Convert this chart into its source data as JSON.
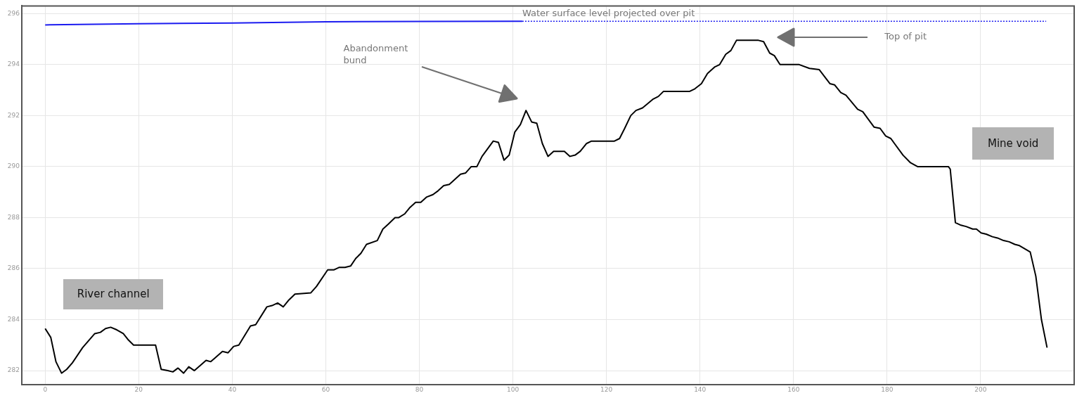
{
  "chart_data": {
    "type": "line",
    "xlim": [
      -5,
      220
    ],
    "ylim": [
      281.45,
      296.3
    ],
    "xticks": [
      0,
      20,
      40,
      60,
      80,
      100,
      120,
      140,
      160,
      180,
      200
    ],
    "yticks": [
      282,
      284,
      286,
      288,
      290,
      292,
      294,
      296
    ],
    "grid": true,
    "marker": "none",
    "series": [
      {
        "color": "#000000",
        "line_style": "solid",
        "x": [
          0,
          1.2,
          2.3,
          3.5,
          4.6,
          5.8,
          8,
          10.6,
          11.8,
          12.9,
          14,
          15.3,
          16.7,
          17.8,
          18.9,
          23.6,
          24.8,
          26.2,
          27.3,
          28.4,
          29.6,
          30.7,
          31.9,
          34.4,
          35.4,
          37.9,
          39.1,
          40.3,
          41.4,
          43.9,
          45,
          47.4,
          48.5,
          49.7,
          50.9,
          52,
          53.4,
          56.8,
          58,
          60.4,
          61.7,
          62.9,
          64.1,
          65.3,
          66.4,
          67.5,
          68.7,
          71,
          72.2,
          73.4,
          74.8,
          75.6,
          76.9,
          78,
          79.2,
          80.3,
          81.5,
          82.9,
          84,
          85.2,
          86.4,
          88.8,
          89.9,
          91.1,
          92.3,
          93.4,
          95.8,
          96.9,
          98.1,
          99.2,
          100.4,
          101.6,
          102.8,
          104,
          105.1,
          106.3,
          107.5,
          108.7,
          111,
          112.2,
          113.3,
          114.4,
          115.7,
          116.8,
          121.7,
          122.8,
          123.9,
          125.2,
          126.3,
          127.7,
          128.7,
          130,
          131.1,
          132.2,
          137.8,
          138.9,
          140.3,
          141.6,
          143.1,
          144.2,
          145.5,
          146.6,
          147.8,
          152.5,
          153.6,
          154.9,
          155.9,
          157.1,
          161.2,
          163.4,
          165.5,
          167.8,
          168.8,
          170.1,
          171.2,
          173.7,
          174.8,
          177.2,
          178.5,
          179.7,
          180.8,
          183.4,
          185,
          186.5,
          193.1,
          193.5,
          194.6,
          195.8,
          196.9,
          198.3,
          199.1,
          200.1,
          201.2,
          202.5,
          203.6,
          204.9,
          206.1,
          207.3,
          208.3,
          210.6,
          211.8,
          213,
          214.2
        ],
        "values": [
          283.65,
          283.3,
          282.35,
          281.9,
          282.05,
          282.3,
          282.9,
          283.45,
          283.5,
          283.65,
          283.7,
          283.6,
          283.45,
          283.2,
          283,
          283,
          282.05,
          282,
          281.95,
          282.1,
          281.9,
          282.15,
          282,
          282.4,
          282.35,
          282.75,
          282.7,
          282.95,
          283,
          283.75,
          283.8,
          284.5,
          284.55,
          284.65,
          284.5,
          284.75,
          285,
          285.05,
          285.3,
          285.95,
          285.95,
          286.05,
          286.05,
          286.1,
          286.4,
          286.6,
          286.95,
          287.1,
          287.55,
          287.75,
          288,
          288,
          288.15,
          288.4,
          288.6,
          288.6,
          288.8,
          288.9,
          289.05,
          289.25,
          289.3,
          289.7,
          289.75,
          290,
          290,
          290.4,
          291,
          290.95,
          290.25,
          290.45,
          291.35,
          291.65,
          292.2,
          291.75,
          291.7,
          290.9,
          290.4,
          290.6,
          290.6,
          290.4,
          290.45,
          290.6,
          290.9,
          291,
          291,
          291.1,
          291.5,
          292,
          292.2,
          292.3,
          292.45,
          292.65,
          292.75,
          292.95,
          292.95,
          293.05,
          293.25,
          293.65,
          293.9,
          294,
          294.4,
          294.55,
          294.95,
          294.95,
          294.9,
          294.45,
          294.35,
          294,
          294,
          293.85,
          293.8,
          293.25,
          293.2,
          292.9,
          292.8,
          292.25,
          292.15,
          291.55,
          291.5,
          291.2,
          291.1,
          290.45,
          290.15,
          290,
          290,
          289.9,
          287.8,
          287.7,
          287.65,
          287.55,
          287.55,
          287.4,
          287.35,
          287.25,
          287.2,
          287.1,
          287.05,
          286.95,
          286.9,
          286.65,
          285.7,
          284,
          282.9
        ]
      },
      {
        "color": "#1c1cf0",
        "line_style": "solid",
        "x": [
          0,
          1,
          20,
          40,
          60,
          80,
          100,
          102
        ],
        "values": [
          295.55,
          295.56,
          295.6,
          295.63,
          295.68,
          295.69,
          295.7,
          295.7
        ]
      },
      {
        "color": "#1c1cf0",
        "line_style": "dotted",
        "x": [
          102,
          214
        ],
        "values": [
          295.7,
          295.7
        ]
      }
    ],
    "annotations": [
      {
        "text": "Water surface level projected over pit",
        "x": 102,
        "y": 295.7
      },
      "Abandonment bund",
      "Top of pit",
      "River channel",
      "Mine void"
    ]
  }
}
